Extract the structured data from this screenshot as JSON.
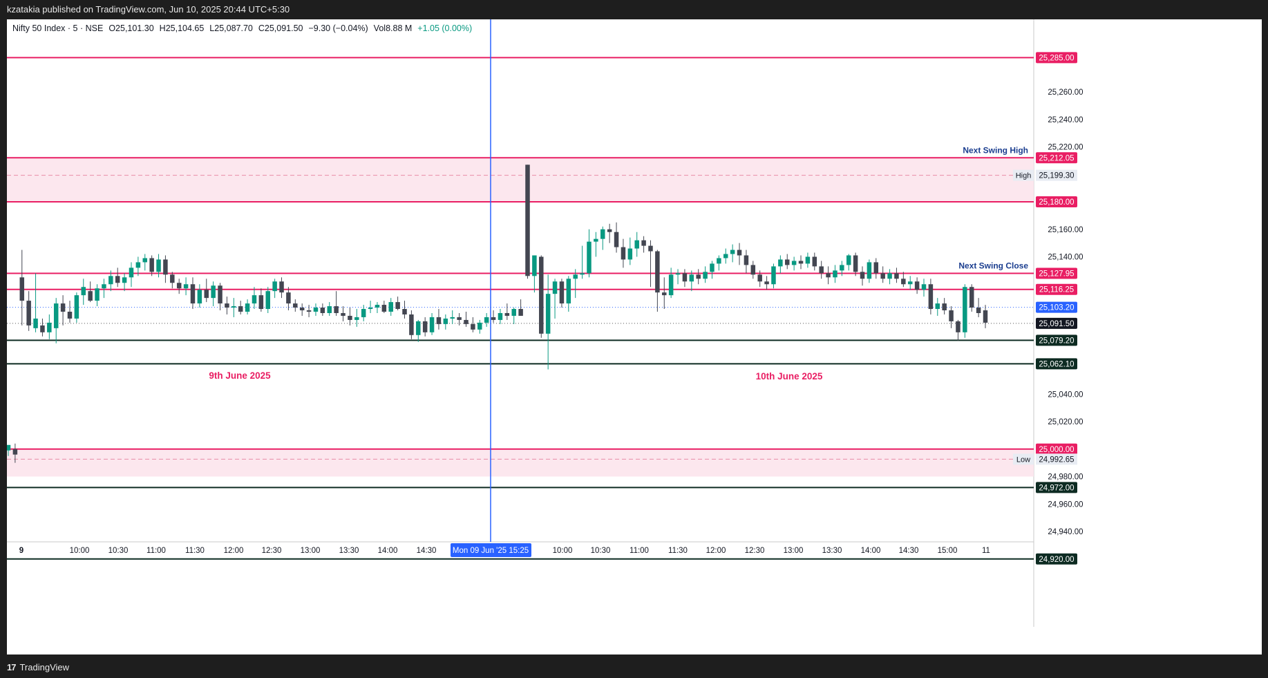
{
  "header": {
    "publisher_line": "kzatakia published on TradingView.com, Jun 10, 2025 20:44 UTC+5:30"
  },
  "legend": {
    "symbol": "Nifty 50 Index · 5 · NSE",
    "open_label": "O",
    "open": "25,101.30",
    "high_label": "H",
    "high": "25,104.65",
    "low_label": "L",
    "low": "25,087.70",
    "close_label": "C",
    "close": "25,091.50",
    "change": "−9.30 (−0.04%)",
    "vol_label": "Vol",
    "vol": "8.88 M",
    "vol_change": "+1.05 (0.00%)"
  },
  "footer": {
    "brand": "TradingView",
    "logo": "17"
  },
  "colors": {
    "up": "#089981",
    "down": "#434651",
    "pink_line": "#e91e63",
    "pink_zone": "#fce4ec",
    "dark_line": "#0d2b22",
    "crosshair": "#2962ff",
    "annotation_blue": "#1a3d8f"
  },
  "chart_data": {
    "type": "candlestick",
    "title": "",
    "ylim": [
      24900,
      25290
    ],
    "y_ticks": [
      "25,260.00",
      "25,240.00",
      "25,220.00",
      "25,160.00",
      "25,140.00",
      "25,040.00",
      "25,020.00",
      "24,980.00",
      "24,960.00",
      "24,940.00"
    ],
    "x_ticks": [
      "9",
      "10:00",
      "10:30",
      "11:00",
      "11:30",
      "12:00",
      "12:30",
      "13:00",
      "13:30",
      "14:00",
      "14:30",
      "10:00",
      "10:30",
      "11:00",
      "11:30",
      "12:00",
      "12:30",
      "13:00",
      "13:30",
      "14:00",
      "14:30",
      "15:00",
      "11"
    ],
    "crosshair_label": "Mon 09 Jun '25   15:25",
    "zones": [
      {
        "from": 25180.0,
        "to": 25212.05,
        "dashed": 25199.3,
        "dashed_label": "High"
      },
      {
        "from": 24980.0,
        "to": 25000.0,
        "dashed": 24992.65,
        "dashed_label": "Low"
      }
    ],
    "levels": [
      {
        "value": 25285.0,
        "label": "25,285.00",
        "style": "pink"
      },
      {
        "value": 25212.05,
        "label": "25,212.05",
        "style": "pink",
        "annotation": "Next Swing High"
      },
      {
        "value": 25180.0,
        "label": "25,180.00",
        "style": "pink"
      },
      {
        "value": 25127.95,
        "label": "25,127.95",
        "style": "pink",
        "annotation": "Next Swing Close"
      },
      {
        "value": 25116.25,
        "label": "25,116.25",
        "style": "pink"
      },
      {
        "value": 25103.2,
        "label": "25,103.20",
        "style": "blue"
      },
      {
        "value": 25091.5,
        "label": "25,091.50",
        "style": "black"
      },
      {
        "value": 25079.2,
        "label": "25,079.20",
        "style": "dark"
      },
      {
        "value": 25062.1,
        "label": "25,062.10",
        "style": "dark"
      },
      {
        "value": 25000.0,
        "label": "25,000.00",
        "style": "pink"
      },
      {
        "value": 24972.0,
        "label": "24,972.00",
        "style": "dark"
      },
      {
        "value": 24920.0,
        "label": "24,920.00",
        "style": "dark"
      }
    ],
    "zone_labels": [
      {
        "value": 25199.3,
        "label": "25,199.30",
        "tag": "High"
      },
      {
        "value": 24992.65,
        "label": "24,992.65",
        "tag": "Low"
      }
    ],
    "day_labels": [
      "9th June 2025",
      "10th June 2025"
    ],
    "candles": [
      [
        24999,
        25002,
        24995,
        25003
      ],
      [
        25000,
        25004,
        24990,
        24996
      ],
      [
        25125,
        25145,
        25090,
        25108
      ],
      [
        25108,
        25115,
        25086,
        25090
      ],
      [
        25088,
        25128,
        25085,
        25095
      ],
      [
        25090,
        25095,
        25082,
        25085
      ],
      [
        25085,
        25098,
        25080,
        25092
      ],
      [
        25088,
        25110,
        25077,
        25106
      ],
      [
        25106,
        25112,
        25090,
        25100
      ],
      [
        25100,
        25108,
        25092,
        25095
      ],
      [
        25095,
        25114,
        25092,
        25112
      ],
      [
        25112,
        25124,
        25105,
        25118
      ],
      [
        25115,
        25122,
        25107,
        25108
      ],
      [
        25108,
        25120,
        25104,
        25117
      ],
      [
        25117,
        25124,
        25110,
        25120
      ],
      [
        25120,
        25130,
        25115,
        25126
      ],
      [
        25126,
        25132,
        25118,
        25121
      ],
      [
        25121,
        25128,
        25115,
        25125
      ],
      [
        25125,
        25136,
        25118,
        25132
      ],
      [
        25132,
        25140,
        25126,
        25136
      ],
      [
        25136,
        25142,
        25130,
        25139
      ],
      [
        25139,
        25141,
        25126,
        25129
      ],
      [
        25129,
        25142,
        25125,
        25138
      ],
      [
        25138,
        25141,
        25121,
        25127
      ],
      [
        25127,
        25129,
        25117,
        25121
      ],
      [
        25121,
        25124,
        25113,
        25117
      ],
      [
        25117,
        25125,
        25112,
        25120
      ],
      [
        25120,
        25125,
        25102,
        25106
      ],
      [
        25106,
        25120,
        25103,
        25116
      ],
      [
        25116,
        25124,
        25107,
        25110
      ],
      [
        25110,
        25122,
        25104,
        25119
      ],
      [
        25119,
        25121,
        25101,
        25106
      ],
      [
        25106,
        25111,
        25098,
        25103
      ],
      [
        25103,
        25110,
        25096,
        25104
      ],
      [
        25104,
        25108,
        25098,
        25100
      ],
      [
        25100,
        25109,
        25098,
        25106
      ],
      [
        25106,
        25118,
        25102,
        25112
      ],
      [
        25112,
        25117,
        25100,
        25102
      ],
      [
        25102,
        25118,
        25099,
        25115
      ],
      [
        25115,
        25124,
        25110,
        25122
      ],
      [
        25122,
        25125,
        25110,
        25114
      ],
      [
        25114,
        25118,
        25101,
        25106
      ],
      [
        25106,
        25109,
        25100,
        25103
      ],
      [
        25103,
        25106,
        25097,
        25101
      ],
      [
        25101,
        25105,
        25096,
        25100
      ],
      [
        25100,
        25106,
        25097,
        25103
      ],
      [
        25103,
        25106,
        25097,
        25099
      ],
      [
        25099,
        25107,
        25097,
        25104
      ],
      [
        25104,
        25115,
        25097,
        25099
      ],
      [
        25099,
        25104,
        25093,
        25097
      ],
      [
        25097,
        25103,
        25090,
        25094
      ],
      [
        25094,
        25102,
        25089,
        25096
      ],
      [
        25096,
        25105,
        25093,
        25102
      ],
      [
        25102,
        25108,
        25099,
        25103
      ],
      [
        25103,
        25107,
        25099,
        25105
      ],
      [
        25105,
        25108,
        25099,
        25100
      ],
      [
        25100,
        25110,
        25097,
        25107
      ],
      [
        25107,
        25111,
        25101,
        25102
      ],
      [
        25102,
        25108,
        25095,
        25098
      ],
      [
        25098,
        25101,
        25080,
        25083
      ],
      [
        25083,
        25094,
        25078,
        25093
      ],
      [
        25093,
        25096,
        25082,
        25085
      ],
      [
        25085,
        25099,
        25083,
        25096
      ],
      [
        25096,
        25102,
        25087,
        25091
      ],
      [
        25091,
        25098,
        25087,
        25095
      ],
      [
        25095,
        25101,
        25091,
        25096
      ],
      [
        25096,
        25099,
        25090,
        25094
      ],
      [
        25094,
        25100,
        25089,
        25091
      ],
      [
        25091,
        25096,
        25085,
        25087
      ],
      [
        25087,
        25094,
        25084,
        25092
      ],
      [
        25092,
        25099,
        25089,
        25096
      ],
      [
        25096,
        25101,
        25092,
        25094
      ],
      [
        25094,
        25102,
        25091,
        25099
      ],
      [
        25099,
        25106,
        25094,
        25097
      ],
      [
        25097,
        25103,
        25091,
        25102
      ],
      [
        25102,
        25109,
        25097,
        25097
      ],
      [
        25207,
        25207,
        25124,
        25126
      ],
      [
        25126,
        25141,
        25114,
        25141
      ],
      [
        25140,
        25141,
        25081,
        25084
      ],
      [
        25084,
        25127,
        25058,
        25113
      ],
      [
        25113,
        25124,
        25095,
        25122
      ],
      [
        25122,
        25124,
        25103,
        25106
      ],
      [
        25106,
        25126,
        25100,
        25124
      ],
      [
        25124,
        25131,
        25110,
        25127
      ],
      [
        25127,
        25148,
        25124,
        25128
      ],
      [
        25128,
        25160,
        25125,
        25151
      ],
      [
        25151,
        25158,
        25140,
        25153
      ],
      [
        25153,
        25162,
        25145,
        25160
      ],
      [
        25160,
        25164,
        25150,
        25158
      ],
      [
        25158,
        25165,
        25143,
        25147
      ],
      [
        25147,
        25153,
        25132,
        25138
      ],
      [
        25138,
        25154,
        25134,
        25146
      ],
      [
        25146,
        25158,
        25140,
        25152
      ],
      [
        25152,
        25155,
        25143,
        25148
      ],
      [
        25148,
        25152,
        25118,
        25144
      ],
      [
        25144,
        25145,
        25100,
        25114
      ],
      [
        25114,
        25125,
        25102,
        25112
      ],
      [
        25112,
        25132,
        25110,
        25127
      ],
      [
        25127,
        25131,
        25120,
        25128
      ],
      [
        25128,
        25131,
        25118,
        25122
      ],
      [
        25122,
        25130,
        25115,
        25127
      ],
      [
        25127,
        25131,
        25120,
        25124
      ],
      [
        25124,
        25133,
        25121,
        25129
      ],
      [
        25129,
        25137,
        25124,
        25135
      ],
      [
        25135,
        25141,
        25130,
        25139
      ],
      [
        25139,
        25146,
        25135,
        25142
      ],
      [
        25142,
        25149,
        25136,
        25145
      ],
      [
        25145,
        25150,
        25134,
        25141
      ],
      [
        25141,
        25145,
        25128,
        25134
      ],
      [
        25134,
        25137,
        25124,
        25127
      ],
      [
        25127,
        25130,
        25118,
        25122
      ],
      [
        25122,
        25126,
        25116,
        25120
      ],
      [
        25120,
        25135,
        25117,
        25133
      ],
      [
        25133,
        25141,
        25128,
        25138
      ],
      [
        25138,
        25142,
        25131,
        25134
      ],
      [
        25134,
        25140,
        25130,
        25137
      ],
      [
        25137,
        25141,
        25131,
        25135
      ],
      [
        25135,
        25143,
        25132,
        25140
      ],
      [
        25140,
        25143,
        25130,
        25133
      ],
      [
        25133,
        25137,
        25124,
        25128
      ],
      [
        25128,
        25133,
        25120,
        25125
      ],
      [
        25125,
        25134,
        25121,
        25130
      ],
      [
        25130,
        25137,
        25126,
        25134
      ],
      [
        25134,
        25142,
        25130,
        25141
      ],
      [
        25141,
        25143,
        25126,
        25129
      ],
      [
        25129,
        25133,
        25119,
        25124
      ],
      [
        25124,
        25138,
        25121,
        25136
      ],
      [
        25136,
        25139,
        25124,
        25128
      ],
      [
        25128,
        25133,
        25121,
        25124
      ],
      [
        25124,
        25131,
        25120,
        25128
      ],
      [
        25128,
        25132,
        25121,
        25124
      ],
      [
        25124,
        25129,
        25118,
        25120
      ],
      [
        25120,
        25126,
        25116,
        25122
      ],
      [
        25122,
        25125,
        25113,
        25116
      ],
      [
        25116,
        25124,
        25111,
        25120
      ],
      [
        25120,
        25124,
        25098,
        25102
      ],
      [
        25102,
        25110,
        25097,
        25106
      ],
      [
        25106,
        25110,
        25098,
        25101
      ],
      [
        25101,
        25104,
        25088,
        25093
      ],
      [
        25093,
        25094,
        25079,
        25085
      ],
      [
        25085,
        25120,
        25081,
        25118
      ],
      [
        25118,
        25120,
        25100,
        25103
      ],
      [
        25103,
        25110,
        25096,
        25099
      ],
      [
        25101,
        25105,
        25088,
        25092
      ]
    ]
  }
}
